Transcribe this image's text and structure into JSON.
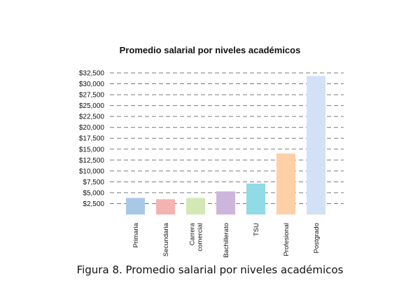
{
  "chart_data": {
    "type": "bar",
    "title": "Promedio salarial por niveles académicos",
    "categories": [
      "Primaria",
      "Secundaria",
      "Carrera comercial",
      "Bachillerato",
      "TSU",
      "Profesional",
      "Postgrado"
    ],
    "category_lines": [
      [
        "Primaria"
      ],
      [
        "Secundaria"
      ],
      [
        "Carrera",
        "comercial"
      ],
      [
        "Bachillerato"
      ],
      [
        "TSU"
      ],
      [
        "Profesional"
      ],
      [
        "Postgrado"
      ]
    ],
    "values": [
      3800,
      3500,
      3800,
      5300,
      7100,
      14000,
      31800
    ],
    "colors": [
      "#a8c8e8",
      "#f4b3b0",
      "#d3e8b4",
      "#cdb6dc",
      "#90dbe6",
      "#fdd0a8",
      "#d2e1f5"
    ],
    "ylim": [
      0,
      32500
    ],
    "yticks": [
      2500,
      5000,
      7500,
      10000,
      12500,
      15000,
      17500,
      20000,
      22500,
      25000,
      27500,
      30000,
      32500
    ],
    "ytick_labels": [
      "$2,500",
      "$5,000",
      "$7,500",
      "$10,000",
      "$12,500",
      "$15,000",
      "$17,500",
      "$20,000",
      "$22,500",
      "$25,000",
      "$27,500",
      "$30,000",
      "$32,500"
    ],
    "grid": true,
    "xlabel": "",
    "ylabel": ""
  },
  "caption": {
    "figure_label": "Figura 8.",
    "text": " Promedio salarial por niveles académicos"
  }
}
